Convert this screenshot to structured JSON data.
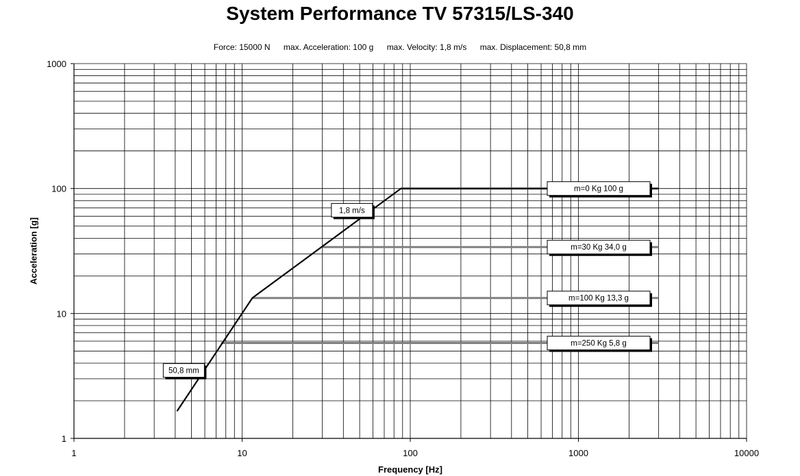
{
  "chart_data": {
    "type": "line",
    "title": "System Performance TV 57315/LS-340",
    "subtitle": [
      "Force: 15000 N",
      "max. Acceleration: 100 g",
      "max. Velocity: 1,8  m/s",
      "max. Displacement: 50,8 mm"
    ],
    "xlabel": "Frequency [Hz]",
    "ylabel": "Acceleration [g]",
    "xscale": "log",
    "yscale": "log",
    "xlim": [
      1,
      10000
    ],
    "ylim": [
      1,
      1000
    ],
    "xticks": [
      "1",
      "10",
      "100",
      "1000",
      "10000"
    ],
    "yticks": [
      "1",
      "10",
      "100",
      "1000"
    ],
    "grid": true,
    "colors": {
      "envelope": "#000000",
      "load_lines": "#808080",
      "grid": "#000000"
    },
    "envelope": {
      "x": [
        4.1,
        11.5,
        88,
        3000
      ],
      "y": [
        1.65,
        13.3,
        100,
        100
      ]
    },
    "load_lines": [
      {
        "label": "m=0 Kg     100 g",
        "x": [
          88,
          3000
        ],
        "y": [
          100,
          100
        ]
      },
      {
        "label": "m=30 Kg     34,0 g",
        "x": [
          30,
          3000
        ],
        "y": [
          34,
          34
        ]
      },
      {
        "label": "m=100 Kg    13,3 g",
        "x": [
          11.5,
          3000
        ],
        "y": [
          13.3,
          13.3
        ]
      },
      {
        "label": "m=250 Kg     5,8 g",
        "x": [
          7.5,
          3000
        ],
        "y": [
          5.8,
          5.8
        ]
      }
    ],
    "annotations": [
      {
        "text": "1,8 m/s",
        "x": 45,
        "y": 67
      },
      {
        "text": "50,8  mm",
        "x": 4.5,
        "y": 3.5
      }
    ]
  }
}
